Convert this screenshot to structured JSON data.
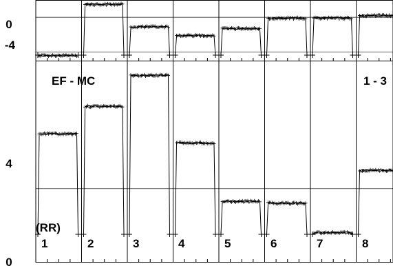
{
  "chart_data": [
    {
      "type": "line",
      "panel": "top",
      "ylim": [
        -5,
        2
      ],
      "y_ticks": [
        {
          "value": 0,
          "label": "0"
        },
        {
          "value": -4,
          "label": "-4"
        }
      ],
      "grid": true,
      "segments": [
        {
          "index": 1,
          "level": -4.4
        },
        {
          "index": 2,
          "level": 1.5
        },
        {
          "index": 3,
          "level": -1.1
        },
        {
          "index": 4,
          "level": -2.1
        },
        {
          "index": 5,
          "level": -1.3
        },
        {
          "index": 6,
          "level": -0.1
        },
        {
          "index": 7,
          "level": -0.1
        },
        {
          "index": 8,
          "level": 0.2
        }
      ]
    },
    {
      "type": "line",
      "panel": "bottom",
      "ylim": [
        0,
        11
      ],
      "y_ticks": [
        {
          "value": 4,
          "label": "4"
        },
        {
          "value": 0,
          "label": "0"
        }
      ],
      "grid": true,
      "annotations": [
        "EF - MC",
        "1 - 3",
        "(RR)"
      ],
      "segment_labels": [
        "1",
        "2",
        "3",
        "4",
        "5",
        "6",
        "7",
        "8"
      ],
      "segments": [
        {
          "index": 1,
          "level": 7.0
        },
        {
          "index": 2,
          "level": 8.5
        },
        {
          "index": 3,
          "level": 10.2
        },
        {
          "index": 4,
          "level": 6.5
        },
        {
          "index": 5,
          "level": 3.3
        },
        {
          "index": 6,
          "level": 3.2
        },
        {
          "index": 7,
          "level": 1.6
        },
        {
          "index": 8,
          "level": 5.0
        }
      ]
    }
  ]
}
